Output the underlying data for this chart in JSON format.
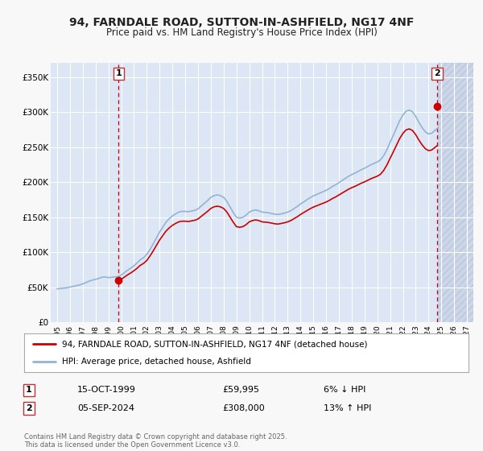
{
  "title": "94, FARNDALE ROAD, SUTTON-IN-ASHFIELD, NG17 4NF",
  "subtitle": "Price paid vs. HM Land Registry's House Price Index (HPI)",
  "fig_bg": "#f8f8f8",
  "plot_bg": "#dce6f4",
  "grid_color": "#ffffff",
  "red_line_color": "#cc0000",
  "blue_line_color": "#92b4d4",
  "sale1_x": 1999.79,
  "sale1_y": 59995,
  "sale2_x": 2024.67,
  "sale2_y": 308000,
  "ylim_min": 0,
  "ylim_max": 370000,
  "xlim_min": 1994.5,
  "xlim_max": 2027.5,
  "yticks": [
    0,
    50000,
    100000,
    150000,
    200000,
    250000,
    300000,
    350000
  ],
  "ytick_labels": [
    "£0",
    "£50K",
    "£100K",
    "£150K",
    "£200K",
    "£250K",
    "£300K",
    "£350K"
  ],
  "xtick_years": [
    1995,
    1996,
    1997,
    1998,
    1999,
    2000,
    2001,
    2002,
    2003,
    2004,
    2005,
    2006,
    2007,
    2008,
    2009,
    2010,
    2011,
    2012,
    2013,
    2014,
    2015,
    2016,
    2017,
    2018,
    2019,
    2020,
    2021,
    2022,
    2023,
    2024,
    2025,
    2026,
    2027
  ],
  "legend_label_red": "94, FARNDALE ROAD, SUTTON-IN-ASHFIELD, NG17 4NF (detached house)",
  "legend_label_blue": "HPI: Average price, detached house, Ashfield",
  "transaction1_date": "15-OCT-1999",
  "transaction1_price": "£59,995",
  "transaction1_hpi": "6% ↓ HPI",
  "transaction2_date": "05-SEP-2024",
  "transaction2_price": "£308,000",
  "transaction2_hpi": "13% ↑ HPI",
  "footer": "Contains HM Land Registry data © Crown copyright and database right 2025.\nThis data is licensed under the Open Government Licence v3.0.",
  "hpi_data_x": [
    1995.0,
    1995.25,
    1995.5,
    1995.75,
    1996.0,
    1996.25,
    1996.5,
    1996.75,
    1997.0,
    1997.25,
    1997.5,
    1997.75,
    1998.0,
    1998.25,
    1998.5,
    1998.75,
    1999.0,
    1999.25,
    1999.5,
    1999.75,
    2000.0,
    2000.25,
    2000.5,
    2000.75,
    2001.0,
    2001.25,
    2001.5,
    2001.75,
    2002.0,
    2002.25,
    2002.5,
    2002.75,
    2003.0,
    2003.25,
    2003.5,
    2003.75,
    2004.0,
    2004.25,
    2004.5,
    2004.75,
    2005.0,
    2005.25,
    2005.5,
    2005.75,
    2006.0,
    2006.25,
    2006.5,
    2006.75,
    2007.0,
    2007.25,
    2007.5,
    2007.75,
    2008.0,
    2008.25,
    2008.5,
    2008.75,
    2009.0,
    2009.25,
    2009.5,
    2009.75,
    2010.0,
    2010.25,
    2010.5,
    2010.75,
    2011.0,
    2011.25,
    2011.5,
    2011.75,
    2012.0,
    2012.25,
    2012.5,
    2012.75,
    2013.0,
    2013.25,
    2013.5,
    2013.75,
    2014.0,
    2014.25,
    2014.5,
    2014.75,
    2015.0,
    2015.25,
    2015.5,
    2015.75,
    2016.0,
    2016.25,
    2016.5,
    2016.75,
    2017.0,
    2017.25,
    2017.5,
    2017.75,
    2018.0,
    2018.25,
    2018.5,
    2018.75,
    2019.0,
    2019.25,
    2019.5,
    2019.75,
    2020.0,
    2020.25,
    2020.5,
    2020.75,
    2021.0,
    2021.25,
    2021.5,
    2021.75,
    2022.0,
    2022.25,
    2022.5,
    2022.75,
    2023.0,
    2023.25,
    2023.5,
    2023.75,
    2024.0,
    2024.25,
    2024.5,
    2024.75
  ],
  "hpi_data_y": [
    48000,
    48500,
    49000,
    49500,
    50500,
    51500,
    52500,
    53500,
    55000,
    57000,
    59000,
    60500,
    61500,
    63000,
    64500,
    65000,
    64000,
    64500,
    65000,
    65500,
    67500,
    71000,
    74500,
    77500,
    81000,
    85000,
    89500,
    92500,
    97000,
    104000,
    112000,
    120500,
    129000,
    136000,
    143000,
    148000,
    152000,
    155000,
    157500,
    158500,
    158500,
    158000,
    159000,
    160000,
    162000,
    166000,
    170000,
    174000,
    178500,
    181000,
    182000,
    181000,
    178500,
    173000,
    165000,
    157000,
    150000,
    149000,
    150000,
    153000,
    157500,
    159500,
    160500,
    159500,
    157500,
    157000,
    156500,
    155500,
    154500,
    154000,
    155000,
    156000,
    157500,
    159500,
    162500,
    165500,
    169000,
    172000,
    175000,
    178000,
    180500,
    182500,
    184500,
    186500,
    188500,
    191000,
    194000,
    196500,
    199500,
    202500,
    205500,
    208500,
    211000,
    213000,
    215500,
    218000,
    220000,
    222500,
    225000,
    227000,
    229000,
    232000,
    238000,
    246500,
    257000,
    267000,
    277500,
    288000,
    296000,
    301500,
    303000,
    300500,
    294000,
    285500,
    278000,
    272000,
    269000,
    270000,
    274000,
    278000
  ]
}
